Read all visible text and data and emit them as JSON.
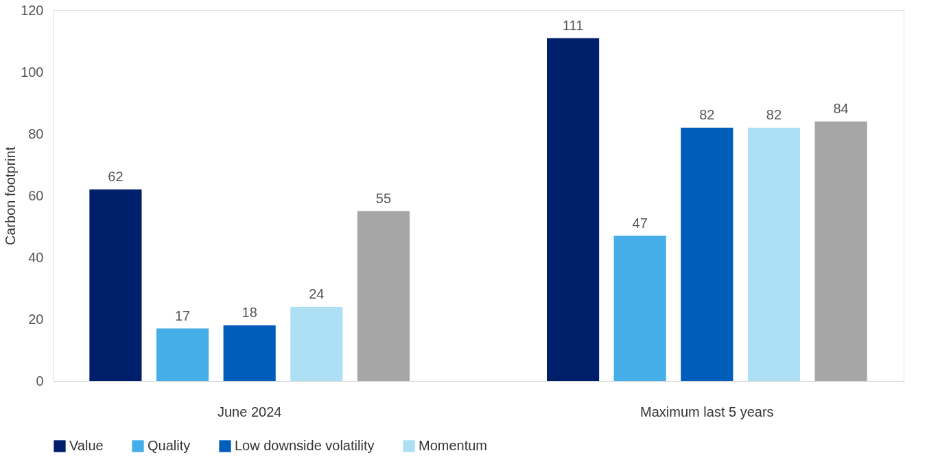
{
  "chart_data": {
    "type": "bar",
    "ylabel": "Carbon footprint",
    "categories": [
      "June 2024",
      "Maximum last 5 years"
    ],
    "series": [
      {
        "name": "Value",
        "color": "#001f6b",
        "values": [
          62,
          111
        ]
      },
      {
        "name": "Quality",
        "color": "#45aee8",
        "values": [
          17,
          47
        ]
      },
      {
        "name": "Low downside volatility",
        "color": "#005ebb",
        "values": [
          18,
          82
        ]
      },
      {
        "name": "Momentum",
        "color": "#addff5",
        "values": [
          24,
          82
        ]
      },
      {
        "color": "#a6a6a6",
        "values": [
          55,
          84
        ]
      }
    ],
    "ylim": [
      0,
      120
    ],
    "yticks": [
      0,
      20,
      40,
      60,
      80,
      100,
      120
    ],
    "grid": false,
    "legend": "bottom",
    "data_labels": true
  }
}
